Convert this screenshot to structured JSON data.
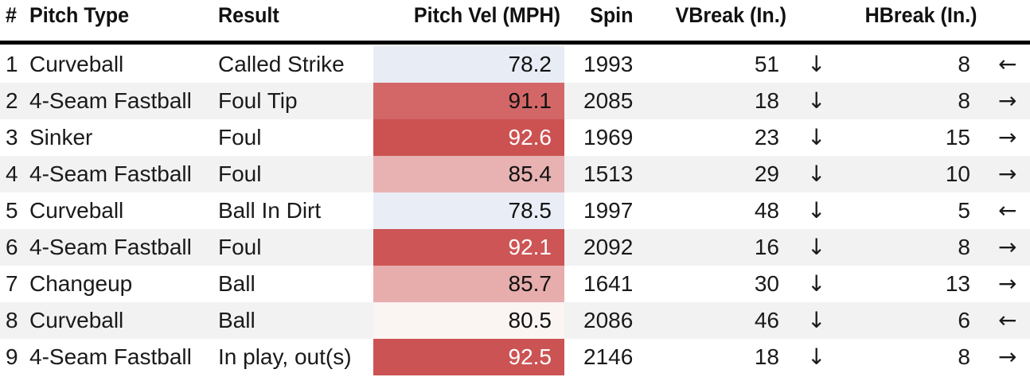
{
  "headers": {
    "num": "#",
    "pitch_type": "Pitch Type",
    "result": "Result",
    "velocity": "Pitch Vel (MPH)",
    "spin": "Spin",
    "vbreak": "VBreak (In.)",
    "hbreak": "HBreak (In.)"
  },
  "colors": {
    "header_rule": "#000000",
    "alt_row": "#f2f2f2",
    "vel_cool": "#e8ecf4",
    "vel_light": "#faf4f3",
    "vel_mid": "#e8b2b2",
    "vel_warm": "#d36767",
    "vel_hot": "#cc5252"
  },
  "rows": [
    {
      "num": "1",
      "pitch_type": "Curveball",
      "result": "Called Strike",
      "velocity": "78.2",
      "vel_color": "#e8ecf4",
      "vel_text_color": "#111111",
      "spin": "1993",
      "vbreak": "51",
      "vbreak_dir": "↓",
      "vbreak_icon": "down-arrow-icon",
      "hbreak": "8",
      "hbreak_dir": "←",
      "hbreak_icon": "left-arrow-icon"
    },
    {
      "num": "2",
      "pitch_type": "4-Seam Fastball",
      "result": "Foul Tip",
      "velocity": "91.1",
      "vel_color": "#d36767",
      "vel_text_color": "#111111",
      "spin": "2085",
      "vbreak": "18",
      "vbreak_dir": "↓",
      "vbreak_icon": "down-arrow-icon",
      "hbreak": "8",
      "hbreak_dir": "→",
      "hbreak_icon": "right-arrow-icon"
    },
    {
      "num": "3",
      "pitch_type": "Sinker",
      "result": "Foul",
      "velocity": "92.6",
      "vel_color": "#cc5252",
      "vel_text_color": "#ffffff",
      "spin": "1969",
      "vbreak": "23",
      "vbreak_dir": "↓",
      "vbreak_icon": "down-arrow-icon",
      "hbreak": "15",
      "hbreak_dir": "→",
      "hbreak_icon": "right-arrow-icon"
    },
    {
      "num": "4",
      "pitch_type": "4-Seam Fastball",
      "result": "Foul",
      "velocity": "85.4",
      "vel_color": "#e8b2b2",
      "vel_text_color": "#111111",
      "spin": "1513",
      "vbreak": "29",
      "vbreak_dir": "↓",
      "vbreak_icon": "down-arrow-icon",
      "hbreak": "10",
      "hbreak_dir": "→",
      "hbreak_icon": "right-arrow-icon"
    },
    {
      "num": "5",
      "pitch_type": "Curveball",
      "result": "Ball In Dirt",
      "velocity": "78.5",
      "vel_color": "#e9edf5",
      "vel_text_color": "#111111",
      "spin": "1997",
      "vbreak": "48",
      "vbreak_dir": "↓",
      "vbreak_icon": "down-arrow-icon",
      "hbreak": "5",
      "hbreak_dir": "←",
      "hbreak_icon": "left-arrow-icon"
    },
    {
      "num": "6",
      "pitch_type": "4-Seam Fastball",
      "result": "Foul",
      "velocity": "92.1",
      "vel_color": "#cd5555",
      "vel_text_color": "#ffffff",
      "spin": "2092",
      "vbreak": "16",
      "vbreak_dir": "↓",
      "vbreak_icon": "down-arrow-icon",
      "hbreak": "8",
      "hbreak_dir": "→",
      "hbreak_icon": "right-arrow-icon"
    },
    {
      "num": "7",
      "pitch_type": "Changeup",
      "result": "Ball",
      "velocity": "85.7",
      "vel_color": "#e7adad",
      "vel_text_color": "#111111",
      "spin": "1641",
      "vbreak": "30",
      "vbreak_dir": "↓",
      "vbreak_icon": "down-arrow-icon",
      "hbreak": "13",
      "hbreak_dir": "→",
      "hbreak_icon": "right-arrow-icon"
    },
    {
      "num": "8",
      "pitch_type": "Curveball",
      "result": "Ball",
      "velocity": "80.5",
      "vel_color": "#faf4f3",
      "vel_text_color": "#111111",
      "spin": "2086",
      "vbreak": "46",
      "vbreak_dir": "↓",
      "vbreak_icon": "down-arrow-icon",
      "hbreak": "6",
      "hbreak_dir": "←",
      "hbreak_icon": "left-arrow-icon"
    },
    {
      "num": "9",
      "pitch_type": "4-Seam Fastball",
      "result": "In play, out(s)",
      "velocity": "92.5",
      "vel_color": "#cc5353",
      "vel_text_color": "#ffffff",
      "spin": "2146",
      "vbreak": "18",
      "vbreak_dir": "↓",
      "vbreak_icon": "down-arrow-icon",
      "hbreak": "8",
      "hbreak_dir": "→",
      "hbreak_icon": "right-arrow-icon"
    }
  ]
}
